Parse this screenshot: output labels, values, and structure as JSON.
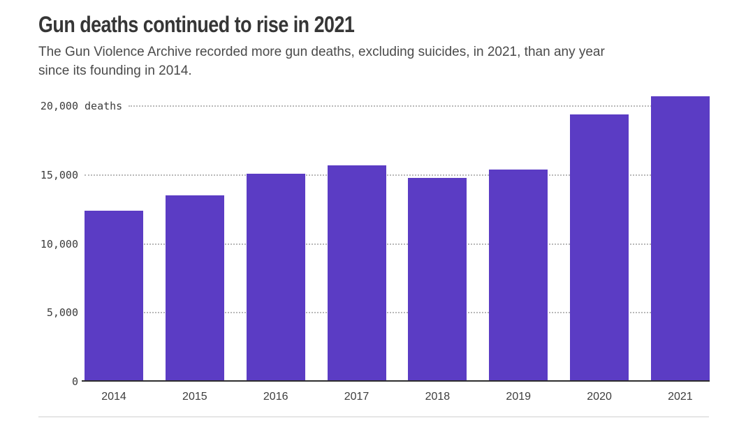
{
  "header": {
    "title": "Gun deaths continued to rise in 2021",
    "subtitle_line1": "The Gun Violence Archive recorded more gun deaths, excluding suicides, in 2021, than any year",
    "subtitle_line2": "since its founding in 2014."
  },
  "colors": {
    "bar": "#5b3cc4",
    "title": "#363636",
    "subtitle": "#4a4a4a",
    "tick_label": "#3c3c3c",
    "x_label": "#3d3d3d",
    "gridline": "#b8b8b8",
    "baseline": "#2e2e2e",
    "bottom_rule": "#cfcfcf"
  },
  "chart_data": {
    "type": "bar",
    "title": "Gun deaths continued to rise in 2021",
    "subtitle": "The Gun Violence Archive recorded more gun deaths, excluding suicides, in 2021, than any year since its founding in 2014.",
    "categories": [
      "2014",
      "2015",
      "2016",
      "2017",
      "2018",
      "2019",
      "2020",
      "2021"
    ],
    "values": [
      12400,
      13500,
      15100,
      15700,
      14800,
      15400,
      19400,
      20700
    ],
    "xlabel": "",
    "ylabel": "deaths",
    "ylim": [
      0,
      20000
    ],
    "yticks": [
      {
        "value": 20000,
        "label": "20,000",
        "suffix": " deaths"
      },
      {
        "value": 15000,
        "label": "15,000",
        "suffix": ""
      },
      {
        "value": 10000,
        "label": "10,000",
        "suffix": ""
      },
      {
        "value": 5000,
        "label": "5,000",
        "suffix": ""
      }
    ],
    "zero_label": "0",
    "grid": "dotted horizontal gridlines behind bars",
    "legend": "none",
    "bar_color": "#5b3cc4"
  }
}
